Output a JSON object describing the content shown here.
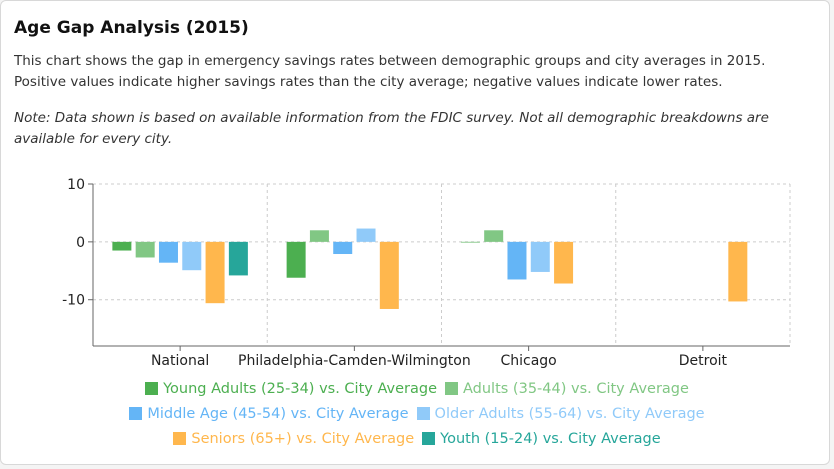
{
  "title": "Age Gap Analysis (2015)",
  "description": "This chart shows the gap in emergency savings rates between demographic groups and city averages in 2015. Positive values indicate higher savings rates than the city average; negative values indicate lower rates.",
  "note": "Note: Data shown is based on available information from the FDIC survey. Not all demographic breakdowns are available for every city.",
  "chart_data": {
    "type": "bar",
    "categories": [
      "National",
      "Philadelphia-Camden-Wilmington",
      "Chicago",
      "Detroit"
    ],
    "series": [
      {
        "name": "Young Adults (25-34) vs. City Average",
        "color": "#4caf50",
        "values": [
          -1.5,
          -6.2,
          -0.1,
          null
        ]
      },
      {
        "name": "Adults (35-44) vs. City Average",
        "color": "#81c784",
        "values": [
          -2.7,
          2.0,
          2.0,
          null
        ]
      },
      {
        "name": "Middle Age (45-54) vs. City Average",
        "color": "#64b5f6",
        "values": [
          -3.6,
          -2.1,
          -6.5,
          null
        ]
      },
      {
        "name": "Older Adults (55-64) vs. City Average",
        "color": "#90caf9",
        "values": [
          -4.9,
          2.3,
          -5.2,
          null
        ]
      },
      {
        "name": "Seniors (65+) vs. City Average",
        "color": "#ffb74d",
        "values": [
          -10.6,
          -11.6,
          -7.2,
          -10.3
        ]
      },
      {
        "name": "Youth (15-24) vs. City Average",
        "color": "#26a69a",
        "values": [
          -5.8,
          null,
          null,
          null
        ]
      }
    ],
    "yticks": [
      10,
      0,
      -10
    ],
    "ylim": [
      -18,
      10
    ],
    "grid": true,
    "legend": "bottom"
  }
}
